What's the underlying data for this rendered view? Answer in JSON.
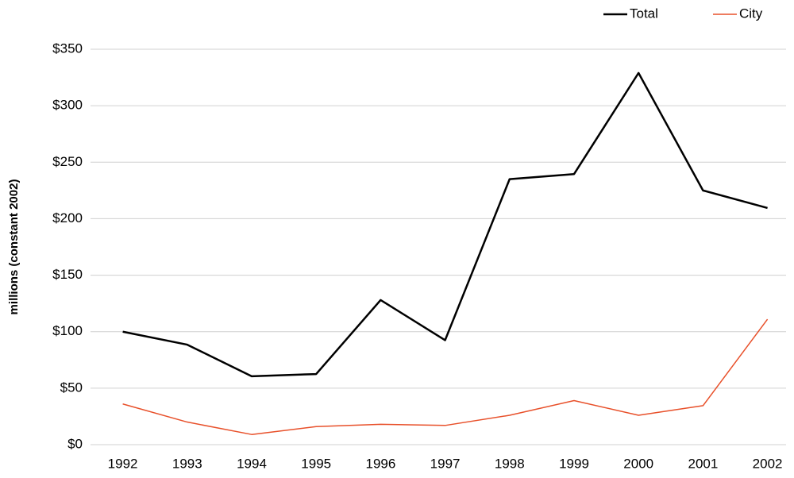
{
  "chart_data": {
    "type": "line",
    "y_label": "millions (constant 2002)",
    "categories": [
      "1992",
      "1993",
      "1994",
      "1995",
      "1996",
      "1997",
      "1998",
      "1999",
      "2000",
      "2001",
      "2002"
    ],
    "series": [
      {
        "name": "Total",
        "color": "#000000",
        "values": [
          100,
          88.5,
          60.5,
          62.5,
          128,
          92.5,
          235,
          239.5,
          329,
          225,
          209.5
        ]
      },
      {
        "name": "City",
        "color": "#e8502a",
        "values": [
          36,
          20,
          9,
          16,
          18,
          17,
          26,
          39,
          26,
          34.5,
          111
        ]
      }
    ],
    "ylim": [
      0,
      350
    ],
    "yticks": [
      {
        "value": 0,
        "label": "$0"
      },
      {
        "value": 50,
        "label": "$50"
      },
      {
        "value": 100,
        "label": "$100"
      },
      {
        "value": 150,
        "label": "$150"
      },
      {
        "value": 200,
        "label": "$200"
      },
      {
        "value": 250,
        "label": "$250"
      },
      {
        "value": 300,
        "label": "$300"
      },
      {
        "value": 350,
        "label": "$350"
      }
    ],
    "grid": true,
    "legend": "upper right"
  }
}
